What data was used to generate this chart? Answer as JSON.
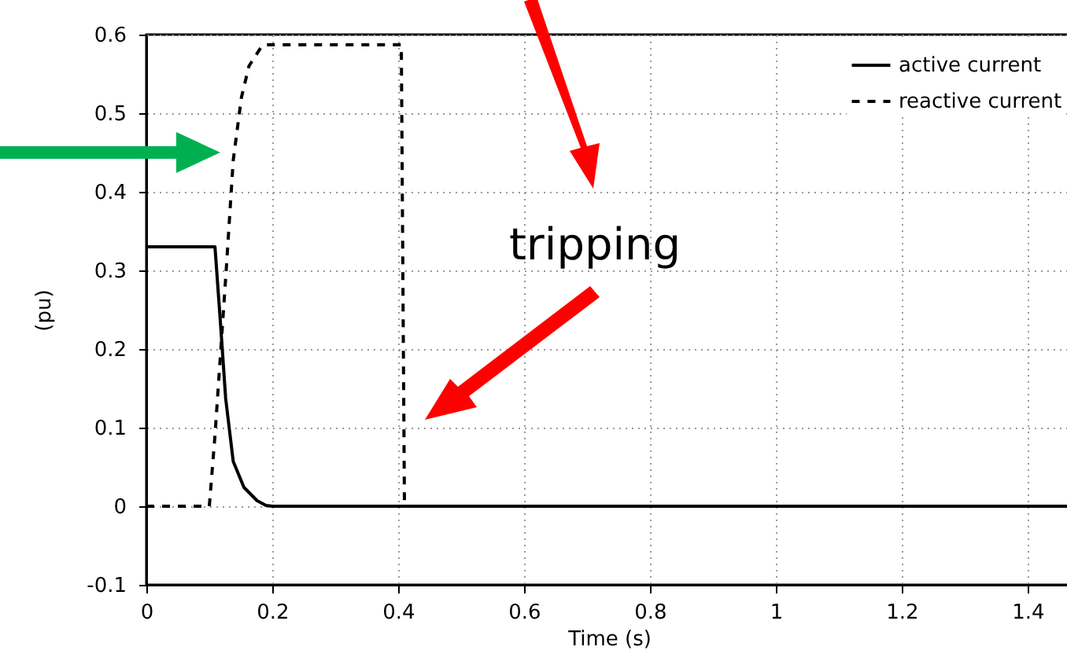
{
  "chart_data": {
    "type": "line",
    "xlabel": "Time (s)",
    "ylabel": "(pu)",
    "xlim": [
      0,
      1.47
    ],
    "xticks": [
      0,
      0.2,
      0.4,
      0.6,
      0.8,
      1,
      1.2,
      1.4
    ],
    "ylim": [
      -0.1,
      0.6
    ],
    "yticks": [
      -0.1,
      0,
      0.1,
      0.2,
      0.3,
      0.4,
      0.5,
      0.6
    ],
    "grid": true,
    "legend": "top right",
    "annotations": [
      "tripping"
    ],
    "series": [
      {
        "name": "active current",
        "color": "#000000",
        "line_style": "solid",
        "x": [
          0,
          0.109,
          0.118,
          0.126,
          0.138,
          0.155,
          0.176,
          0.19,
          0.2,
          1.47
        ],
        "values": [
          0.33,
          0.33,
          0.23,
          0.137,
          0.057,
          0.024,
          0.007,
          0.001,
          0,
          0
        ]
      },
      {
        "name": "reactive current",
        "color": "#000000",
        "line_style": "dashed",
        "x": [
          0,
          0.1,
          0.109,
          0.126,
          0.138,
          0.151,
          0.163,
          0.184,
          0.19,
          0.405,
          0.41,
          1.47
        ],
        "values": [
          0,
          0,
          0.09,
          0.29,
          0.44,
          0.52,
          0.56,
          0.586,
          0.587,
          0.587,
          0,
          0
        ]
      }
    ]
  }
}
